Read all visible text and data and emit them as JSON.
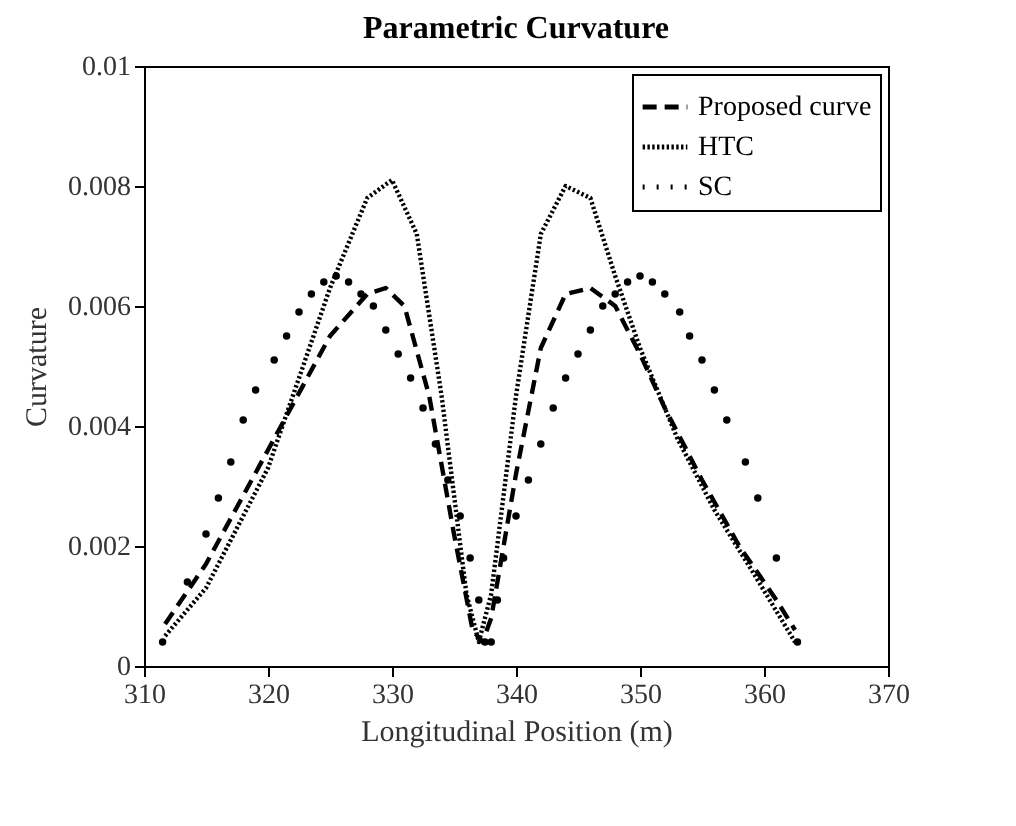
{
  "chart_data": {
    "type": "line",
    "title": "Parametric Curvature",
    "xlabel": "Longitudinal Position (m)",
    "ylabel": "Curvature",
    "xlim": [
      310,
      370
    ],
    "xticks": [
      310,
      320,
      330,
      340,
      350,
      360,
      370
    ],
    "ylim": [
      0,
      0.01
    ],
    "yticks": [
      0,
      0.002,
      0.004,
      0.006,
      0.008,
      0.01
    ],
    "grid": false,
    "legend": "top right",
    "series": [
      {
        "name": "Proposed curve",
        "color": "#000000",
        "line_style": "dashed",
        "x": [
          311.7,
          315,
          320,
          325,
          328,
          329.5,
          331,
          333,
          335,
          336.5,
          337.3,
          338,
          340,
          342,
          344,
          346,
          348,
          350,
          352,
          355,
          358,
          361,
          362.5
        ],
        "values": [
          0.0007,
          0.0017,
          0.0036,
          0.0055,
          0.0062,
          0.0063,
          0.006,
          0.0045,
          0.0022,
          0.0006,
          0.0004,
          0.0008,
          0.0032,
          0.0053,
          0.0062,
          0.0063,
          0.006,
          0.0052,
          0.0043,
          0.0031,
          0.002,
          0.0011,
          0.0006
        ]
      },
      {
        "name": "HTC",
        "color": "#000000",
        "line_style": "dotted",
        "x": [
          311.7,
          315,
          320,
          325,
          328,
          330,
          332,
          334,
          336,
          337,
          338,
          340,
          342,
          344,
          346,
          348,
          350,
          353,
          356,
          359,
          362.5
        ],
        "values": [
          0.0005,
          0.0013,
          0.0033,
          0.0063,
          0.0078,
          0.0081,
          0.0072,
          0.0045,
          0.0012,
          0.0004,
          0.0012,
          0.0045,
          0.0072,
          0.008,
          0.0078,
          0.0065,
          0.0053,
          0.0038,
          0.0026,
          0.0016,
          0.0004
        ]
      },
      {
        "name": "SC",
        "color": "#000000",
        "type": "scatter",
        "marker": "circle",
        "x": [
          311.5,
          313.5,
          315,
          316,
          317,
          318,
          319,
          320.5,
          321.5,
          322.5,
          323.5,
          324.5,
          325.5,
          326.5,
          327.5,
          328.5,
          329.5,
          330.5,
          331.5,
          332.5,
          333.5,
          334.5,
          335.5,
          336.3,
          337,
          337.5,
          338,
          338.5,
          339,
          340,
          341,
          342,
          343,
          344,
          345,
          346,
          347,
          348,
          349,
          350,
          351,
          352,
          353.2,
          354,
          355,
          356,
          357,
          358.5,
          359.5,
          361,
          362.7
        ],
        "values": [
          0.0004,
          0.0014,
          0.0022,
          0.0028,
          0.0034,
          0.0041,
          0.0046,
          0.0051,
          0.0055,
          0.0059,
          0.0062,
          0.0064,
          0.0065,
          0.0064,
          0.0062,
          0.006,
          0.0056,
          0.0052,
          0.0048,
          0.0043,
          0.0037,
          0.0031,
          0.0025,
          0.0018,
          0.0011,
          0.0004,
          0.0004,
          0.0011,
          0.0018,
          0.0025,
          0.0031,
          0.0037,
          0.0043,
          0.0048,
          0.0052,
          0.0056,
          0.006,
          0.0062,
          0.0064,
          0.0065,
          0.0064,
          0.0062,
          0.0059,
          0.0055,
          0.0051,
          0.0046,
          0.0041,
          0.0034,
          0.0028,
          0.0018,
          0.0004
        ]
      }
    ]
  }
}
